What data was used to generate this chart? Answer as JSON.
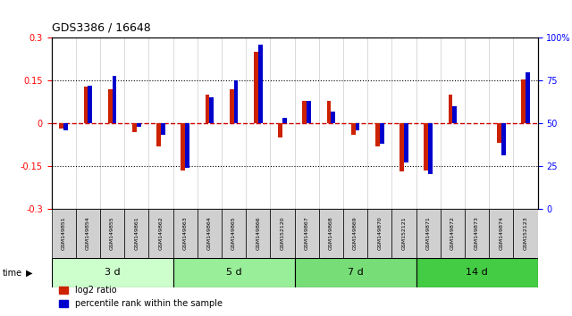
{
  "title": "GDS3386 / 16648",
  "samples": [
    "GSM149851",
    "GSM149854",
    "GSM149855",
    "GSM149861",
    "GSM149862",
    "GSM149863",
    "GSM149864",
    "GSM149865",
    "GSM149866",
    "GSM152120",
    "GSM149867",
    "GSM149868",
    "GSM149869",
    "GSM149870",
    "GSM152121",
    "GSM149871",
    "GSM149872",
    "GSM149873",
    "GSM149874",
    "GSM152123"
  ],
  "log2_ratio": [
    -0.02,
    0.13,
    0.12,
    -0.03,
    -0.08,
    -0.165,
    0.1,
    0.12,
    0.25,
    -0.05,
    0.08,
    0.08,
    -0.04,
    -0.08,
    -0.17,
    -0.165,
    0.1,
    0.0,
    -0.07,
    0.155
  ],
  "percentile": [
    46,
    72,
    78,
    48,
    43,
    24,
    65,
    75,
    96,
    53,
    63,
    57,
    46,
    38,
    27,
    20,
    60,
    50,
    31,
    80
  ],
  "groups": [
    {
      "label": "3 d",
      "start": 0,
      "end": 5,
      "color": "#ccffcc"
    },
    {
      "label": "5 d",
      "start": 5,
      "end": 10,
      "color": "#99ee99"
    },
    {
      "label": "7 d",
      "start": 10,
      "end": 15,
      "color": "#77dd77"
    },
    {
      "label": "14 d",
      "start": 15,
      "end": 20,
      "color": "#44cc44"
    }
  ],
  "ylim_left": [
    -0.3,
    0.3
  ],
  "ylim_right": [
    0,
    100
  ],
  "yticks_left": [
    -0.3,
    -0.15,
    0.0,
    0.15,
    0.3
  ],
  "yticks_right": [
    0,
    25,
    50,
    75,
    100
  ],
  "ytick_labels_left": [
    "-0.3",
    "-0.15",
    "0",
    "0.15",
    "0.3"
  ],
  "ytick_labels_right": [
    "0",
    "25",
    "50",
    "75",
    "100%"
  ],
  "hlines": [
    0.15,
    0.0,
    -0.15
  ],
  "bar_color_red": "#cc2200",
  "bar_color_blue": "#0000cc",
  "zero_line_color": "#cc0000",
  "grid_color": "#000000",
  "bg_color": "#ffffff",
  "label_red": "log2 ratio",
  "label_blue": "percentile rank within the sample"
}
